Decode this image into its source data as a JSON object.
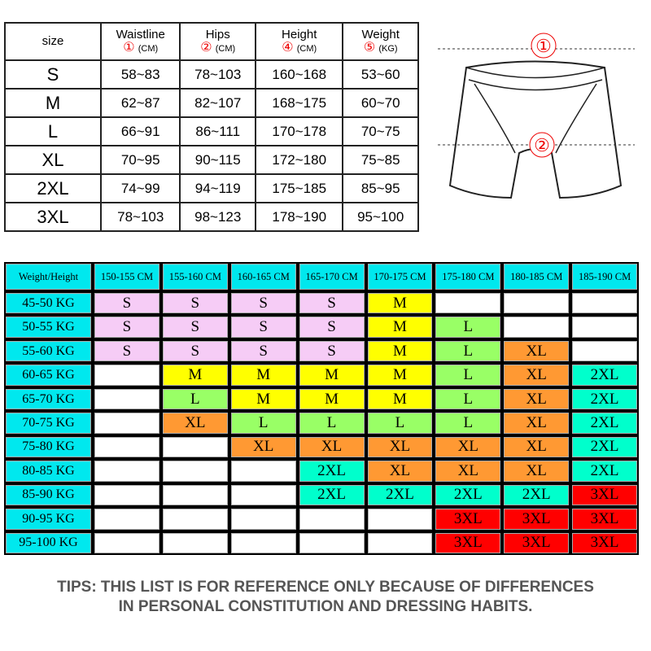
{
  "size_table": {
    "headers": [
      {
        "label": "size"
      },
      {
        "label": "Waistline",
        "num": "①",
        "unit": "(CM)"
      },
      {
        "label": "Hips",
        "num": "②",
        "unit": "(CM)"
      },
      {
        "label": "Height",
        "num": "④",
        "unit": "(CM)"
      },
      {
        "label": "Weight",
        "num": "⑤",
        "unit": "(KG)"
      }
    ],
    "rows": [
      [
        "S",
        "58~83",
        "78~103",
        "160~168",
        "53~60"
      ],
      [
        "M",
        "62~87",
        "82~107",
        "168~175",
        "60~70"
      ],
      [
        "L",
        "66~91",
        "86~111",
        "170~178",
        "70~75"
      ],
      [
        "XL",
        "70~95",
        "90~115",
        "172~180",
        "75~85"
      ],
      [
        "2XL",
        "74~99",
        "94~119",
        "175~185",
        "85~95"
      ],
      [
        "3XL",
        "78~103",
        "98~123",
        "178~190",
        "95~100"
      ]
    ]
  },
  "diagram": {
    "mark1": "①",
    "mark2": "②"
  },
  "grid": {
    "corner": "Weight/Height",
    "columns": [
      "150-155 CM",
      "155-160 CM",
      "160-165 CM",
      "165-170 CM",
      "170-175 CM",
      "175-180 CM",
      "180-185 CM",
      "185-190 CM"
    ],
    "rows": [
      {
        "label": "45-50 KG",
        "cells": [
          "S",
          "S",
          "S",
          "S",
          "M",
          "",
          "",
          ""
        ]
      },
      {
        "label": "50-55 KG",
        "cells": [
          "S",
          "S",
          "S",
          "S",
          "M",
          "L",
          "",
          ""
        ]
      },
      {
        "label": "55-60 KG",
        "cells": [
          "S",
          "S",
          "S",
          "S",
          "M",
          "L",
          "XL",
          ""
        ]
      },
      {
        "label": "60-65 KG",
        "cells": [
          "",
          "M",
          "M",
          "M",
          "M",
          "L",
          "XL",
          "2XL"
        ]
      },
      {
        "label": "65-70 KG",
        "cells": [
          "",
          "L",
          "M",
          "M",
          "M",
          "L",
          "XL",
          "2XL"
        ]
      },
      {
        "label": "70-75 KG",
        "cells": [
          "",
          "XL",
          "L",
          "L",
          "L",
          "L",
          "XL",
          "2XL"
        ]
      },
      {
        "label": "75-80 KG",
        "cells": [
          "",
          "",
          "XL",
          "XL",
          "XL",
          "XL",
          "XL",
          "2XL"
        ]
      },
      {
        "label": "80-85 KG",
        "cells": [
          "",
          "",
          "",
          "2XL",
          "XL",
          "XL",
          "XL",
          "2XL"
        ]
      },
      {
        "label": "85-90 KG",
        "cells": [
          "",
          "",
          "",
          "2XL",
          "2XL",
          "2XL",
          "2XL",
          "3XL"
        ]
      },
      {
        "label": "90-95 KG",
        "cells": [
          "",
          "",
          "",
          "",
          "",
          "3XL",
          "3XL",
          "3XL"
        ]
      },
      {
        "label": "95-100 KG",
        "cells": [
          "",
          "",
          "",
          "",
          "",
          "3XL",
          "3XL",
          "3XL"
        ]
      }
    ],
    "colors": {
      "S": "#f6ccf6",
      "M": "#ffff00",
      "L": "#99ff66",
      "XL": "#ff9933",
      "2XL": "#00ffcc",
      "3XL": "#ff0000",
      "": "#ffffff"
    }
  },
  "tips": {
    "line1": "TIPS: THIS LIST IS FOR REFERENCE ONLY BECAUSE OF DIFFERENCES",
    "line2": "IN PERSONAL CONSTITUTION AND DRESSING HABITS."
  }
}
